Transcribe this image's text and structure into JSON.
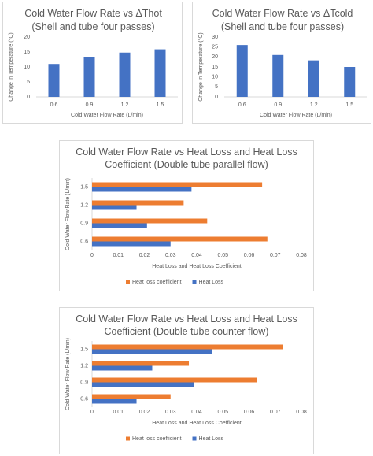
{
  "chart_data": [
    {
      "type": "bar",
      "title": "Cold Water Flow Rate vs ΔThot",
      "subtitle": "(Shell and tube four passes)",
      "x_label": "Cold Water Flow Rate (L/min)",
      "y_label": "Change in Temperature (°C)",
      "categories": [
        "0.6",
        "0.9",
        "1.2",
        "1.5"
      ],
      "values": [
        11,
        13.2,
        14.8,
        15.9
      ],
      "color": "#4472c4",
      "ylim": [
        0,
        20
      ],
      "yticks": [
        0,
        5,
        10,
        15,
        20
      ],
      "grid": false
    },
    {
      "type": "bar",
      "title": "Cold Water Flow Rate vs ΔTcold",
      "subtitle": "(Shell and tube four passes)",
      "x_label": "Cold Water Flow Rate (L/min)",
      "y_label": "Change in Temperature (°C)",
      "categories": [
        "0.6",
        "0.9",
        "1.2",
        "1.5"
      ],
      "values": [
        26,
        21,
        18.3,
        15
      ],
      "color": "#4472c4",
      "ylim": [
        0,
        30
      ],
      "yticks": [
        0,
        5,
        10,
        15,
        20,
        25,
        30
      ],
      "grid": false
    },
    {
      "type": "barh",
      "title": "Cold Water Flow Rate vs Heat Loss and Heat Loss Coefficient (Double tube parallel flow)",
      "x_label": "Heat Loss and Heat Loss Coefficient",
      "y_label": "Cold Water Flow Rate (L/min)",
      "categories": [
        "0.6",
        "0.9",
        "1.2",
        "1.5"
      ],
      "series": [
        {
          "name": "Heat loss coefficient",
          "color": "#ed7d31",
          "values": [
            0.067,
            0.044,
            0.035,
            0.065
          ]
        },
        {
          "name": "Heat Loss",
          "color": "#4472c4",
          "values": [
            0.03,
            0.021,
            0.017,
            0.038
          ]
        }
      ],
      "xlim": [
        0,
        0.08
      ],
      "xticks": [
        0,
        0.01,
        0.02,
        0.03,
        0.04,
        0.05,
        0.06,
        0.07,
        0.08
      ],
      "grid": false,
      "legend": "bottom"
    },
    {
      "type": "barh",
      "title": "Cold Water Flow Rate vs Heat Loss and Heat Loss Coefficient (Double tube counter flow)",
      "x_label": "Heat Loss and Heat Loss Coefficient",
      "y_label": "Cold Water Flow Rate (L/min)",
      "categories": [
        "0.6",
        "0.9",
        "1.2",
        "1.5"
      ],
      "series": [
        {
          "name": "Heat loss coefficient",
          "color": "#ed7d31",
          "values": [
            0.03,
            0.063,
            0.037,
            0.073
          ]
        },
        {
          "name": "Heat Loss",
          "color": "#4472c4",
          "values": [
            0.017,
            0.039,
            0.023,
            0.046
          ]
        }
      ],
      "xlim": [
        0,
        0.08
      ],
      "xticks": [
        0,
        0.01,
        0.02,
        0.03,
        0.04,
        0.05,
        0.06,
        0.07,
        0.08
      ],
      "grid": false,
      "legend": "bottom"
    }
  ]
}
